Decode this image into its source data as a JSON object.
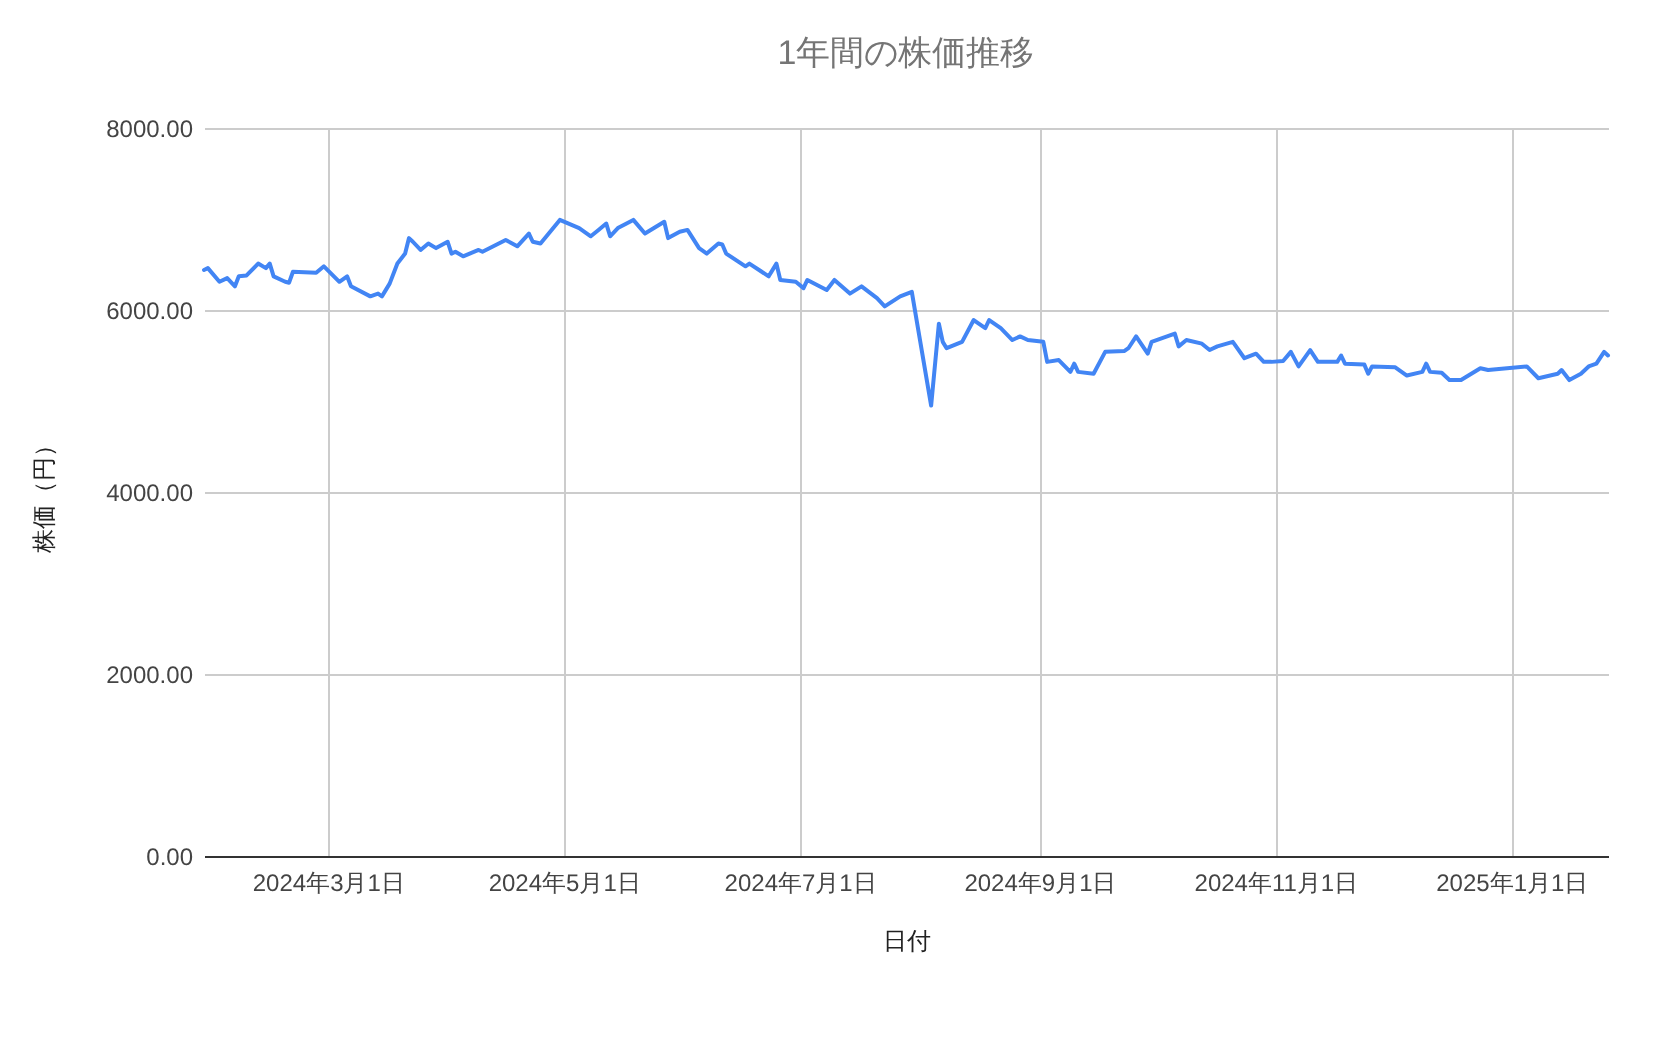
{
  "chart_data": {
    "type": "line",
    "title": "1年間の株価推移",
    "xlabel": "日付",
    "ylabel": "株価（円）",
    "x": [
      "2024-01-29",
      "2024-01-30",
      "2024-02-02",
      "2024-02-04",
      "2024-02-06",
      "2024-02-07",
      "2024-02-09",
      "2024-02-12",
      "2024-02-14",
      "2024-02-15",
      "2024-02-16",
      "2024-02-19",
      "2024-02-20",
      "2024-02-21",
      "2024-02-27",
      "2024-02-29",
      "2024-03-04",
      "2024-03-06",
      "2024-03-07",
      "2024-03-12",
      "2024-03-14",
      "2024-03-15",
      "2024-03-17",
      "2024-03-19",
      "2024-03-21",
      "2024-03-22",
      "2024-03-23",
      "2024-03-25",
      "2024-03-27",
      "2024-03-29",
      "2024-04-01",
      "2024-04-02",
      "2024-04-03",
      "2024-04-05",
      "2024-04-09",
      "2024-04-10",
      "2024-04-16",
      "2024-04-19",
      "2024-04-22",
      "2024-04-23",
      "2024-04-25",
      "2024-04-30",
      "2024-05-05",
      "2024-05-08",
      "2024-05-10",
      "2024-05-12",
      "2024-05-13",
      "2024-05-15",
      "2024-05-19",
      "2024-05-22",
      "2024-05-27",
      "2024-05-28",
      "2024-05-31",
      "2024-06-02",
      "2024-06-05",
      "2024-06-07",
      "2024-06-10",
      "2024-06-11",
      "2024-06-12",
      "2024-06-17",
      "2024-06-18",
      "2024-06-23",
      "2024-06-25",
      "2024-06-26",
      "2024-06-30",
      "2024-07-02",
      "2024-07-03",
      "2024-07-08",
      "2024-07-10",
      "2024-07-14",
      "2024-07-17",
      "2024-07-21",
      "2024-07-23",
      "2024-07-27",
      "2024-07-30",
      "2024-08-04",
      "2024-08-06",
      "2024-08-07",
      "2024-08-08",
      "2024-08-12",
      "2024-08-15",
      "2024-08-18",
      "2024-08-19",
      "2024-08-22",
      "2024-08-25",
      "2024-08-27",
      "2024-08-29",
      "2024-09-02",
      "2024-09-03",
      "2024-09-06",
      "2024-09-09",
      "2024-09-10",
      "2024-09-11",
      "2024-09-15",
      "2024-09-18",
      "2024-09-23",
      "2024-09-24",
      "2024-09-26",
      "2024-09-29",
      "2024-09-30",
      "2024-10-06",
      "2024-10-07",
      "2024-10-09",
      "2024-10-13",
      "2024-10-15",
      "2024-10-17",
      "2024-10-21",
      "2024-10-24",
      "2024-10-27",
      "2024-10-29",
      "2024-10-31",
      "2024-11-03",
      "2024-11-05",
      "2024-11-07",
      "2024-11-10",
      "2024-11-12",
      "2024-11-17",
      "2024-11-18",
      "2024-11-19",
      "2024-11-24",
      "2024-11-25",
      "2024-11-26",
      "2024-12-02",
      "2024-12-05",
      "2024-12-09",
      "2024-12-10",
      "2024-12-11",
      "2024-12-14",
      "2024-12-16",
      "2024-12-19",
      "2024-12-24",
      "2024-12-26",
      "2025-01-05",
      "2025-01-08",
      "2025-01-13",
      "2025-01-14",
      "2025-01-16",
      "2025-01-19",
      "2025-01-21",
      "2025-01-23",
      "2025-01-25",
      "2025-01-26"
    ],
    "series": [
      {
        "color": "#4285f4",
        "values": [
          6440,
          6460,
          6310,
          6350,
          6260,
          6370,
          6380,
          6510,
          6460,
          6510,
          6370,
          6310,
          6300,
          6420,
          6410,
          6480,
          6310,
          6370,
          6260,
          6150,
          6180,
          6150,
          6290,
          6510,
          6620,
          6790,
          6750,
          6660,
          6730,
          6680,
          6750,
          6620,
          6640,
          6590,
          6660,
          6640,
          6770,
          6700,
          6840,
          6750,
          6730,
          6990,
          6900,
          6810,
          6880,
          6950,
          6810,
          6900,
          6990,
          6840,
          6970,
          6790,
          6860,
          6880,
          6680,
          6620,
          6730,
          6720,
          6620,
          6480,
          6510,
          6370,
          6510,
          6330,
          6310,
          6240,
          6330,
          6220,
          6330,
          6180,
          6260,
          6130,
          6040,
          6150,
          6200,
          4950,
          5850,
          5650,
          5580,
          5650,
          5890,
          5800,
          5890,
          5800,
          5670,
          5710,
          5670,
          5650,
          5430,
          5450,
          5320,
          5410,
          5320,
          5300,
          5540,
          5550,
          5580,
          5710,
          5520,
          5650,
          5740,
          5600,
          5670,
          5630,
          5560,
          5600,
          5650,
          5470,
          5520,
          5430,
          5430,
          5440,
          5540,
          5380,
          5560,
          5430,
          5430,
          5500,
          5410,
          5400,
          5300,
          5380,
          5370,
          5280,
          5320,
          5410,
          5320,
          5310,
          5230,
          5230,
          5360,
          5340,
          5380,
          5250,
          5300,
          5340,
          5230,
          5300,
          5380,
          5410,
          5540,
          5500
        ]
      }
    ],
    "xlim": [
      "2024-01-29",
      "2025-01-26"
    ],
    "xticks": [
      {
        "value": "2024-03-01",
        "label": "2024年3月1日"
      },
      {
        "value": "2024-05-01",
        "label": "2024年5月1日"
      },
      {
        "value": "2024-07-01",
        "label": "2024年7月1日"
      },
      {
        "value": "2024-09-01",
        "label": "2024年9月1日"
      },
      {
        "value": "2024-11-01",
        "label": "2024年11月1日"
      },
      {
        "value": "2025-01-01",
        "label": "2025年1月1日"
      }
    ],
    "ylim": [
      0,
      8000
    ],
    "yticks": [
      {
        "value": 0,
        "label": "0.00"
      },
      {
        "value": 2000,
        "label": "2000.00"
      },
      {
        "value": 4000,
        "label": "4000.00"
      },
      {
        "value": 6000,
        "label": "6000.00"
      },
      {
        "value": 8000,
        "label": "8000.00"
      }
    ],
    "grid": true,
    "legend": false,
    "marker": "none",
    "line_style": "solid"
  }
}
